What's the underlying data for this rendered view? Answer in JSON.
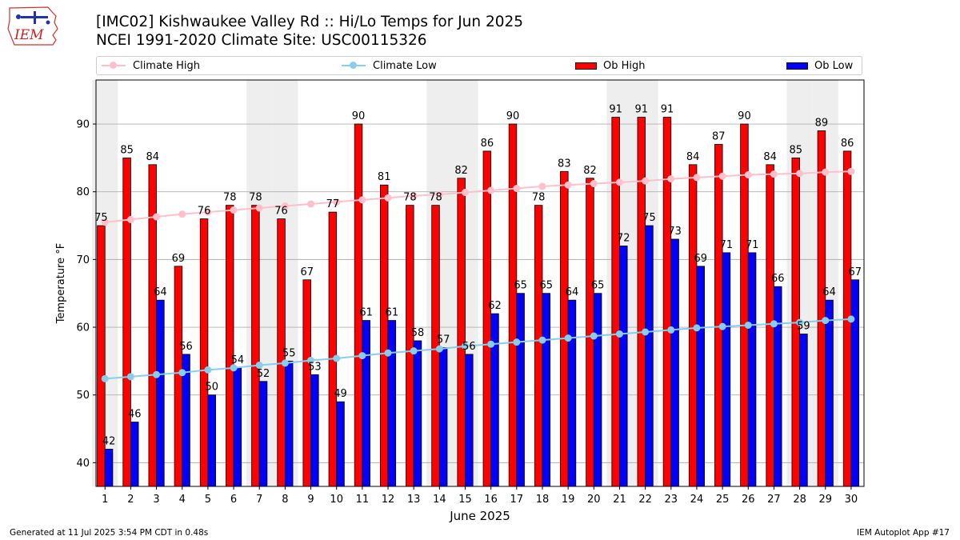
{
  "header": {
    "title_line1": "[IMC02] Kishwaukee Valley Rd  :: Hi/Lo Temps for Jun 2025",
    "title_line2": "NCEI 1991-2020 Climate Site: USC00115326",
    "logo_text": "IEM"
  },
  "legend": {
    "climate_high": "Climate High",
    "climate_low": "Climate Low",
    "ob_high": "Ob High",
    "ob_low": "Ob Low"
  },
  "colors": {
    "ob_high": "#ff0000",
    "ob_low": "#0000ff",
    "climate_high": "#ffc0cb",
    "climate_low": "#87ceeb",
    "weekend_shade": "#eeeeee",
    "grid": "#b0b0b0"
  },
  "footer": {
    "generated": "Generated at 11 Jul 2025 3:54 PM CDT in 0.48s",
    "app": "IEM Autoplot App #17"
  },
  "chart_data": {
    "type": "bar",
    "title": "[IMC02] Kishwaukee Valley Rd  :: Hi/Lo Temps for Jun 2025",
    "subtitle": "NCEI 1991-2020 Climate Site: USC00115326",
    "xlabel": "June 2025",
    "ylabel": "Temperature °F",
    "ylim": [
      36.5,
      96.5
    ],
    "yticks": [
      40,
      50,
      60,
      70,
      80,
      90
    ],
    "grid": true,
    "legend_position": "top",
    "categories": [
      "1",
      "2",
      "3",
      "4",
      "5",
      "6",
      "7",
      "8",
      "9",
      "10",
      "11",
      "12",
      "13",
      "14",
      "15",
      "16",
      "17",
      "18",
      "19",
      "20",
      "21",
      "22",
      "23",
      "24",
      "25",
      "26",
      "27",
      "28",
      "29",
      "30"
    ],
    "shaded_days": [
      1,
      7,
      8,
      14,
      15,
      21,
      22,
      28,
      29
    ],
    "series": [
      {
        "name": "Ob High",
        "kind": "bar",
        "values": [
          75,
          85,
          84,
          69,
          76,
          78,
          78,
          76,
          67,
          77,
          90,
          81,
          78,
          78,
          82,
          86,
          90,
          78,
          83,
          82,
          91,
          91,
          91,
          84,
          87,
          90,
          84,
          85,
          89,
          86
        ]
      },
      {
        "name": "Ob Low",
        "kind": "bar",
        "values": [
          42,
          46,
          64,
          56,
          50,
          54,
          52,
          55,
          53,
          49,
          61,
          61,
          58,
          57,
          56,
          62,
          65,
          65,
          64,
          65,
          72,
          75,
          73,
          69,
          71,
          71,
          66,
          59,
          64,
          67
        ]
      },
      {
        "name": "Climate High",
        "kind": "line",
        "values": [
          75.5,
          75.9,
          76.3,
          76.7,
          77.0,
          77.3,
          77.6,
          77.9,
          78.2,
          78.5,
          78.8,
          79.1,
          79.4,
          79.6,
          79.9,
          80.2,
          80.5,
          80.8,
          81.0,
          81.2,
          81.4,
          81.6,
          81.9,
          82.1,
          82.3,
          82.5,
          82.6,
          82.7,
          82.9,
          83.0
        ]
      },
      {
        "name": "Climate Low",
        "kind": "line",
        "values": [
          52.4,
          52.7,
          53.0,
          53.3,
          53.7,
          54.0,
          54.4,
          54.7,
          55.1,
          55.4,
          55.8,
          56.2,
          56.5,
          56.8,
          57.2,
          57.5,
          57.8,
          58.1,
          58.4,
          58.7,
          59.0,
          59.3,
          59.6,
          59.9,
          60.1,
          60.3,
          60.5,
          60.7,
          61.0,
          61.2
        ]
      }
    ]
  }
}
